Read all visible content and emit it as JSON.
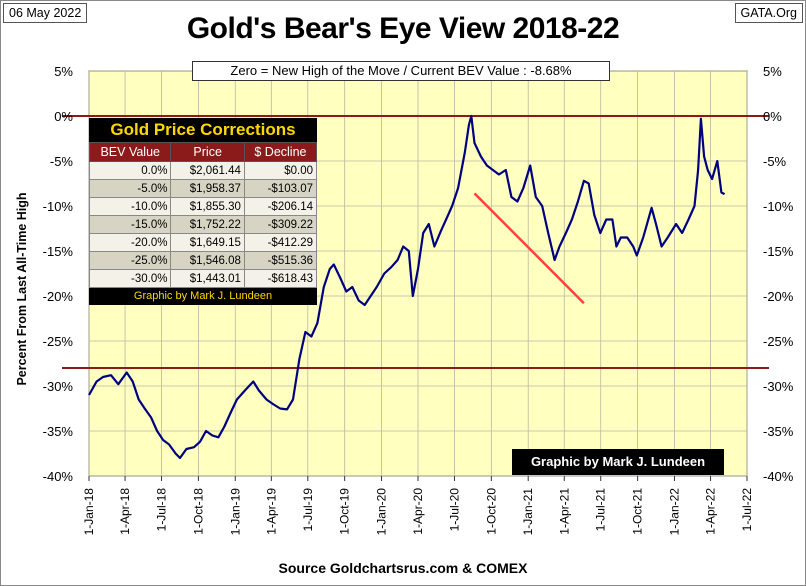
{
  "header": {
    "date": "06 May 2022",
    "org": "GATA.Org",
    "title": "Gold's Bear's Eye View 2018-22"
  },
  "footer": {
    "source": "Source Goldchartsrus.com & COMEX"
  },
  "chart_data": {
    "type": "line",
    "title": "Gold's Bear's Eye View 2018-22",
    "subtitle": "Zero = New High of the Move / Current  BEV Value : -8.68%",
    "ylabel": "Percent  From  Last  All-Time  High",
    "xlabel": "",
    "ylim": [
      -40,
      5
    ],
    "yticks": [
      5,
      0,
      -5,
      -10,
      -15,
      -20,
      -25,
      -30,
      -35,
      -40
    ],
    "ytick_labels": [
      "5%",
      "0%",
      "-5%",
      "-10%",
      "-15%",
      "-20%",
      "-25%",
      "-30%",
      "-35%",
      "-40%"
    ],
    "xlim": [
      "2018-01-01",
      "2022-07-01"
    ],
    "xtick_labels": [
      "1-Jan-18",
      "1-Apr-18",
      "1-Jul-18",
      "1-Oct-18",
      "1-Jan-19",
      "1-Apr-19",
      "1-Jul-19",
      "1-Oct-19",
      "1-Jan-20",
      "1-Apr-20",
      "1-Jul-20",
      "1-Oct-20",
      "1-Jan-21",
      "1-Apr-21",
      "1-Jul-21",
      "1-Oct-21",
      "1-Jan-22",
      "1-Apr-22",
      "1-Jul-22"
    ],
    "xtick_dates": [
      "2018-01-01",
      "2018-04-01",
      "2018-07-01",
      "2018-10-01",
      "2019-01-01",
      "2019-04-01",
      "2019-07-01",
      "2019-10-01",
      "2020-01-01",
      "2020-04-01",
      "2020-07-01",
      "2020-10-01",
      "2021-01-01",
      "2021-04-01",
      "2021-07-01",
      "2021-10-01",
      "2022-01-01",
      "2022-04-01",
      "2022-07-01"
    ],
    "grid": true,
    "colors": {
      "plot_bg": "#ffffc0",
      "series": "#000080",
      "trend": "#ff4040",
      "reference": "#8b1a1a"
    },
    "reference_lines": [
      0,
      -28
    ],
    "trend_line": {
      "x": [
        "2020-08-20",
        "2021-05-20"
      ],
      "y": [
        -8.6,
        -20.8
      ]
    },
    "series": [
      {
        "x": [
          "2018-01-01",
          "2018-01-20",
          "2018-02-05",
          "2018-02-25",
          "2018-03-15",
          "2018-04-05",
          "2018-04-20",
          "2018-05-05",
          "2018-05-20",
          "2018-06-05",
          "2018-06-20",
          "2018-07-05",
          "2018-07-20",
          "2018-08-05",
          "2018-08-16",
          "2018-09-01",
          "2018-09-20",
          "2018-10-05",
          "2018-10-20",
          "2018-11-05",
          "2018-11-20",
          "2018-12-05",
          "2018-12-20",
          "2019-01-05",
          "2019-01-25",
          "2019-02-15",
          "2019-03-01",
          "2019-03-20",
          "2019-04-05",
          "2019-04-23",
          "2019-05-10",
          "2019-05-25",
          "2019-06-10",
          "2019-06-25",
          "2019-07-10",
          "2019-07-25",
          "2019-08-10",
          "2019-08-25",
          "2019-09-04",
          "2019-09-20",
          "2019-10-05",
          "2019-10-20",
          "2019-11-05",
          "2019-11-20",
          "2019-12-05",
          "2019-12-20",
          "2020-01-08",
          "2020-01-25",
          "2020-02-10",
          "2020-02-24",
          "2020-03-09",
          "2020-03-19",
          "2020-04-01",
          "2020-04-14",
          "2020-04-28",
          "2020-05-12",
          "2020-05-28",
          "2020-06-10",
          "2020-06-25",
          "2020-07-10",
          "2020-07-27",
          "2020-08-06",
          "2020-08-12",
          "2020-08-20",
          "2020-09-05",
          "2020-09-20",
          "2020-10-05",
          "2020-10-20",
          "2020-11-06",
          "2020-11-20",
          "2020-12-05",
          "2020-12-20",
          "2021-01-06",
          "2021-01-20",
          "2021-02-05",
          "2021-02-20",
          "2021-03-08",
          "2021-03-20",
          "2021-04-05",
          "2021-04-20",
          "2021-05-05",
          "2021-05-20",
          "2021-06-01",
          "2021-06-15",
          "2021-06-30",
          "2021-07-15",
          "2021-07-30",
          "2021-08-09",
          "2021-08-20",
          "2021-09-05",
          "2021-09-20",
          "2021-09-29",
          "2021-10-15",
          "2021-11-05",
          "2021-11-16",
          "2021-11-30",
          "2021-12-15",
          "2022-01-05",
          "2022-01-20",
          "2022-02-05",
          "2022-02-20",
          "2022-03-01",
          "2022-03-08",
          "2022-03-16",
          "2022-03-25",
          "2022-04-05",
          "2022-04-18",
          "2022-04-28",
          "2022-05-06"
        ],
        "values": [
          -31,
          -29.5,
          -29,
          -28.8,
          -29.8,
          -28.5,
          -29.5,
          -31.5,
          -32.5,
          -33.5,
          -35,
          -36,
          -36.5,
          -37.5,
          -38,
          -37,
          -36.8,
          -36.2,
          -35,
          -35.5,
          -35.7,
          -34.5,
          -33,
          -31.5,
          -30.5,
          -29.5,
          -30.5,
          -31.5,
          -32,
          -32.5,
          -32.6,
          -31.5,
          -27,
          -24,
          -24.5,
          -23,
          -19,
          -17,
          -16.5,
          -18,
          -19.5,
          -19,
          -20.5,
          -21,
          -20,
          -19,
          -17.5,
          -16.8,
          -16,
          -14.5,
          -15,
          -20,
          -17,
          -13,
          -12,
          -14.5,
          -12.8,
          -11.5,
          -10,
          -8,
          -4,
          -1,
          0,
          -3,
          -4.5,
          -5.5,
          -6,
          -6.5,
          -6,
          -9,
          -9.5,
          -8,
          -5.5,
          -9,
          -10,
          -13,
          -16,
          -14.5,
          -13,
          -11.5,
          -9.5,
          -7.2,
          -7.5,
          -11,
          -13,
          -11.5,
          -11.5,
          -14.5,
          -13.5,
          -13.5,
          -14.5,
          -15.5,
          -13.5,
          -10.2,
          -12,
          -14.5,
          -13.5,
          -12,
          -13,
          -11.5,
          -10,
          -6,
          -0.3,
          -4.5,
          -6,
          -7,
          -5,
          -8.5,
          -8.68
        ]
      }
    ]
  },
  "corrections": {
    "title": "Gold Price Corrections",
    "headers": [
      "BEV Value",
      "Price",
      "$ Decline"
    ],
    "rows": [
      [
        "0.0%",
        "$2,061.44",
        "$0.00"
      ],
      [
        "-5.0%",
        "$1,958.37",
        "-$103.07"
      ],
      [
        "-10.0%",
        "$1,855.30",
        "-$206.14"
      ],
      [
        "-15.0%",
        "$1,752.22",
        "-$309.22"
      ],
      [
        "-20.0%",
        "$1,649.15",
        "-$412.29"
      ],
      [
        "-25.0%",
        "$1,546.08",
        "-$515.36"
      ],
      [
        "-30.0%",
        "$1,443.01",
        "-$618.43"
      ]
    ],
    "credit": "Graphic by Mark J. Lundeen"
  },
  "credit_box": "Graphic by Mark J. Lundeen"
}
